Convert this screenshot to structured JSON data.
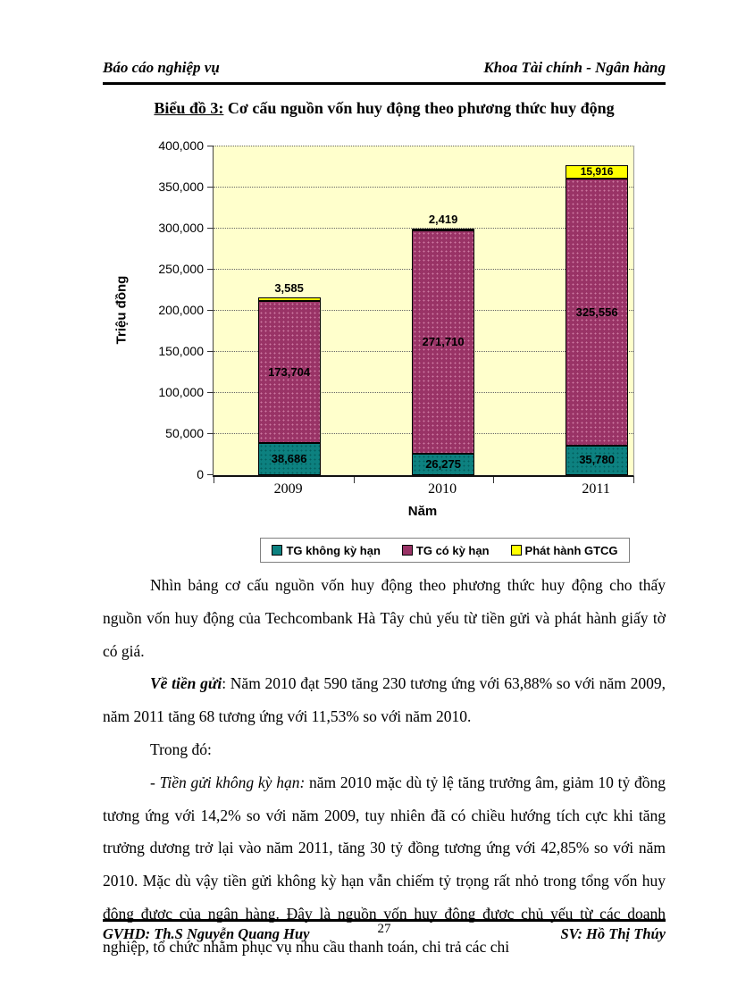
{
  "header": {
    "left": "Báo cáo nghiệp vụ",
    "right": "Khoa Tài chính - Ngân hàng"
  },
  "title": {
    "label": "Biểu đồ 3:",
    "text": " Cơ cấu nguồn vốn huy động theo phương thức huy động"
  },
  "chart_data": {
    "type": "bar",
    "stacked": true,
    "categories": [
      "2009",
      "2010",
      "2011"
    ],
    "series": [
      {
        "name": "TG không kỳ hạn",
        "color": "#0d8180",
        "values": [
          38686,
          26275,
          35780
        ],
        "labels": [
          "38,686",
          "26,275",
          "35,780"
        ]
      },
      {
        "name": "TG có kỳ hạn",
        "color": "#993366",
        "values": [
          173704,
          271710,
          325556
        ],
        "labels": [
          "173,704",
          "271,710",
          "325,556"
        ]
      },
      {
        "name": "Phát hành GTCG",
        "color": "#ffff00",
        "values": [
          3585,
          2419,
          15916
        ],
        "labels": [
          "3,585",
          "2,419",
          "15,916"
        ]
      }
    ],
    "xlabel": "Năm",
    "ylabel": "Triệu đồng",
    "ylim": [
      0,
      400000
    ],
    "ytick_step": 50000,
    "ytick_labels": [
      "0",
      "50,000",
      "100,000",
      "150,000",
      "200,000",
      "250,000",
      "300,000",
      "350,000",
      "400,000"
    ],
    "grid": true,
    "plot_bg": "#ffffcc",
    "legend_position": "bottom"
  },
  "body": {
    "p1": "Nhìn bảng cơ cấu nguồn vốn huy động theo phương thức huy động cho thấy nguồn vốn huy động của Techcombank Hà Tây chủ yếu từ tiền gửi và phát hành giấy tờ có giá.",
    "p2_lead": "Về tiền gửi",
    "p2_rest": ": Năm 2010 đạt 590 tăng 230 tương ứng với 63,88% so với năm 2009, năm 2011 tăng 68 tương ứng với 11,53% so với năm 2010.",
    "p3": "Trong đó:",
    "p4_lead": "- Tiền gửi không kỳ hạn:",
    "p4_rest": " năm 2010 mặc dù tỷ lệ tăng trưởng âm, giảm 10 tỷ đồng tương ứng với 14,2% so với năm 2009, tuy nhiên đã có chiều hướng tích cực khi tăng trưởng dương trở lại vào năm 2011, tăng 30 tỷ đồng tương ứng với 42,85% so với năm 2010. Mặc dù vậy tiền gửi không kỳ hạn vẫn chiếm tỷ trọng rất nhỏ trong tổng vốn huy động được của ngân hàng. Đây là nguồn vốn huy động được chủ yếu từ các doanh nghiệp, tổ chức nhằm phục vụ nhu cầu thanh toán, chi trả các chi"
  },
  "footer": {
    "left": "GVHD: Th.S Nguyễn Quang Huy",
    "page_number": "27",
    "right": "SV: Hồ Thị Thúy"
  }
}
